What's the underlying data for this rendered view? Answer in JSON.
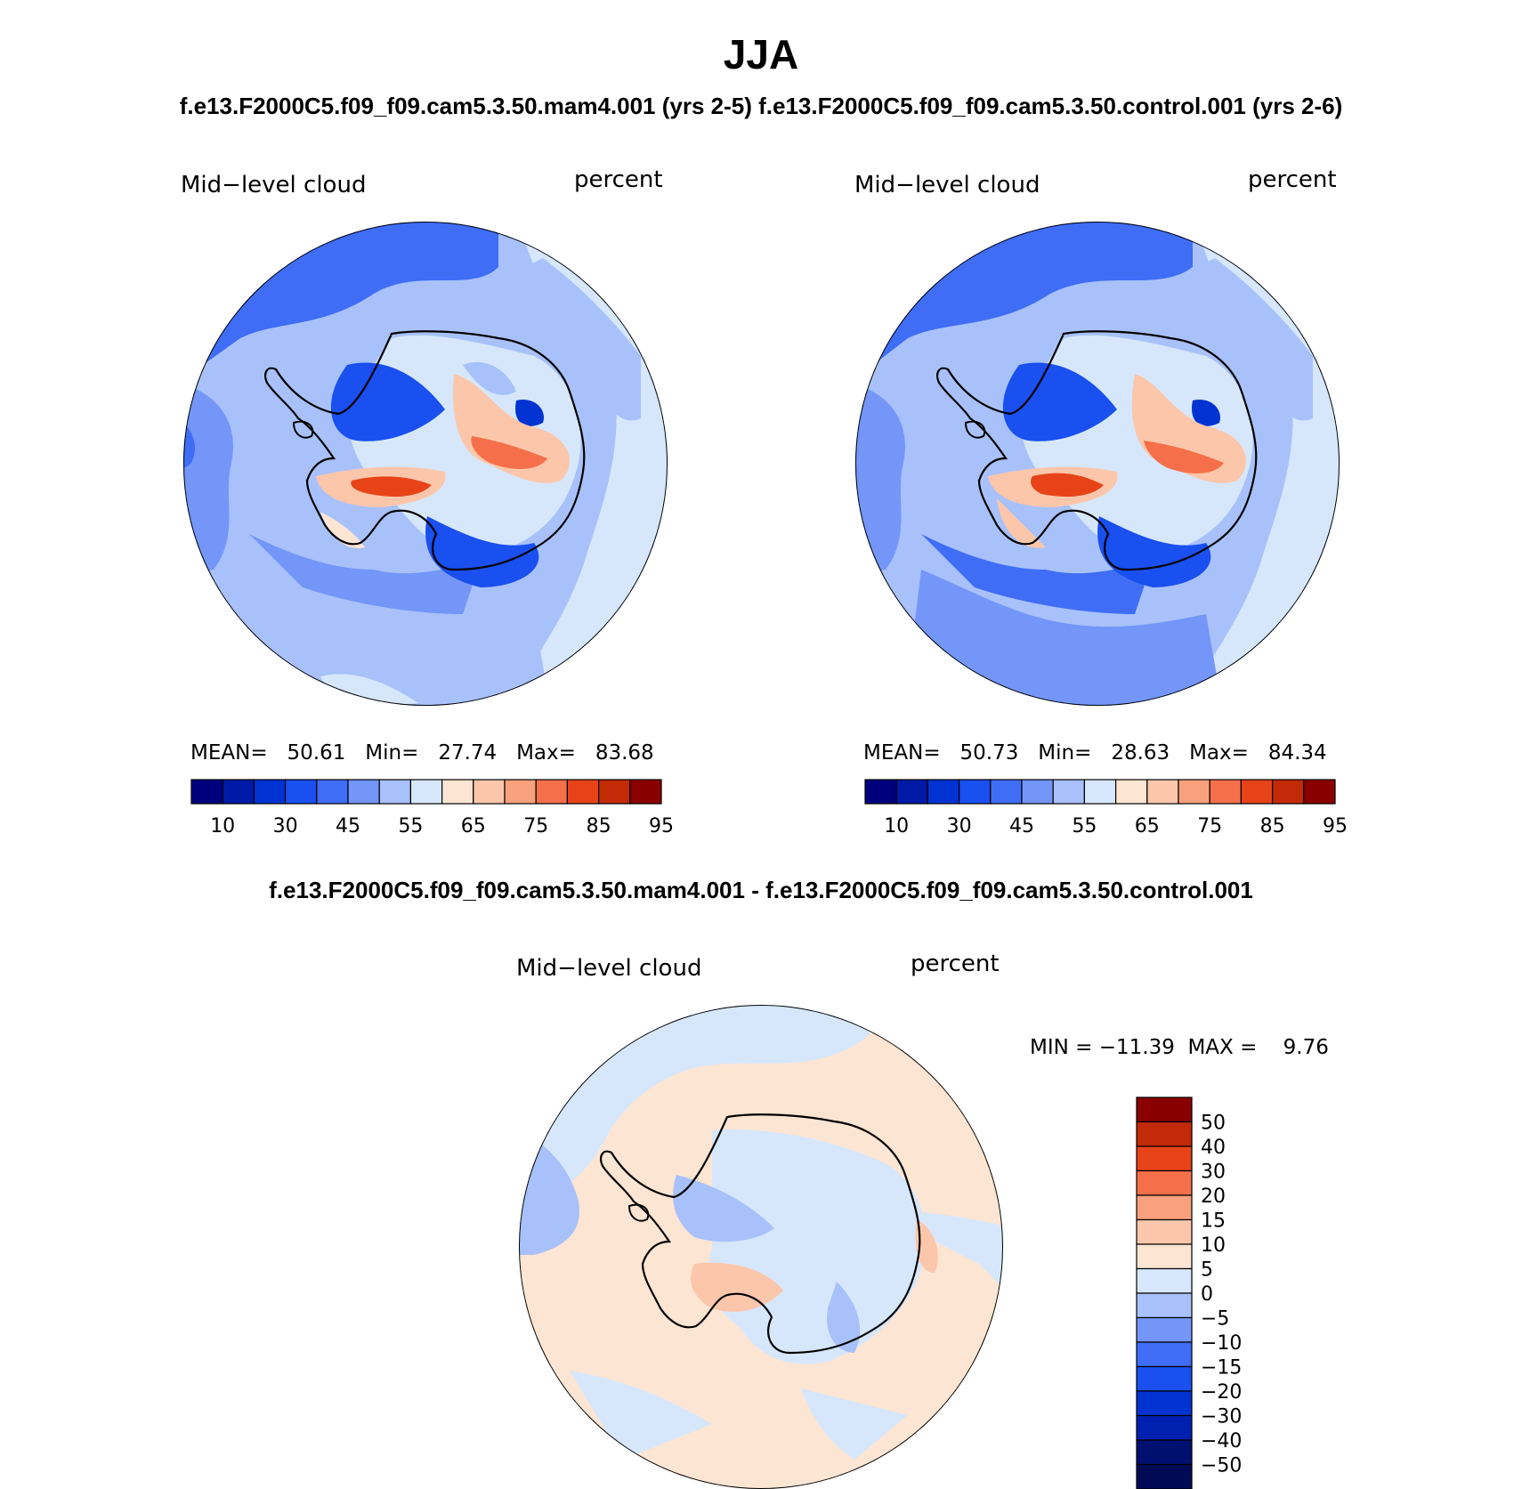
{
  "title": "JJA",
  "subtitle": "f.e13.F2000C5.f09_f09.cam5.3.50.mam4.001 (yrs 2-5) f.e13.F2000C5.f09_f09.cam5.3.50.control.001 (yrs 2-6)",
  "diff_title": "f.e13.F2000C5.f09_f09.cam5.3.50.mam4.001 - f.e13.F2000C5.f09_f09.cam5.3.50.control.001",
  "colors": {
    "abs_levels": [
      "#00007f",
      "#001aa8",
      "#0033d1",
      "#1a4ff0",
      "#3f6df5",
      "#7396f8",
      "#a8c1fa",
      "#d6e7fb",
      "#fde5d3",
      "#fcc6aa",
      "#f9a07d",
      "#f5704a",
      "#e84318",
      "#c22a08",
      "#8a0000"
    ],
    "diff_levels": [
      "#001070",
      "#0020b0",
      "#0033d1",
      "#1a4ff0",
      "#3f6df5",
      "#7396f8",
      "#a8c1fa",
      "#d6e7fb",
      "#fde5d3",
      "#fcc6aa",
      "#f9a07d",
      "#f5704a",
      "#e84318",
      "#c22a08",
      "#8a0000"
    ]
  },
  "panels": [
    {
      "field_label": "Mid−level cloud",
      "units_label": "percent",
      "stats": "MEAN=   50.61   Min=   27.74   Max=   83.68",
      "mean": 50.61,
      "min": 27.74,
      "max": 83.68,
      "colorbar_labels": [
        "10",
        "30",
        "45",
        "55",
        "65",
        "75",
        "85",
        "95"
      ]
    },
    {
      "field_label": "Mid−level cloud",
      "units_label": "percent",
      "stats": "MEAN=   50.73   Min=   28.63   Max=   84.34",
      "mean": 50.73,
      "min": 28.63,
      "max": 84.34,
      "colorbar_labels": [
        "10",
        "30",
        "45",
        "55",
        "65",
        "75",
        "85",
        "95"
      ]
    }
  ],
  "diff_panel": {
    "field_label": "Mid−level cloud",
    "units_label": "percent",
    "stats": "MIN = −11.39  MAX =    9.76",
    "min": -11.39,
    "max": 9.76,
    "colorbar_labels": [
      "50",
      "40",
      "30",
      "20",
      "15",
      "10",
      "5",
      "0",
      "−5",
      "−10",
      "−15",
      "−20",
      "−30",
      "−40",
      "−50"
    ]
  }
}
